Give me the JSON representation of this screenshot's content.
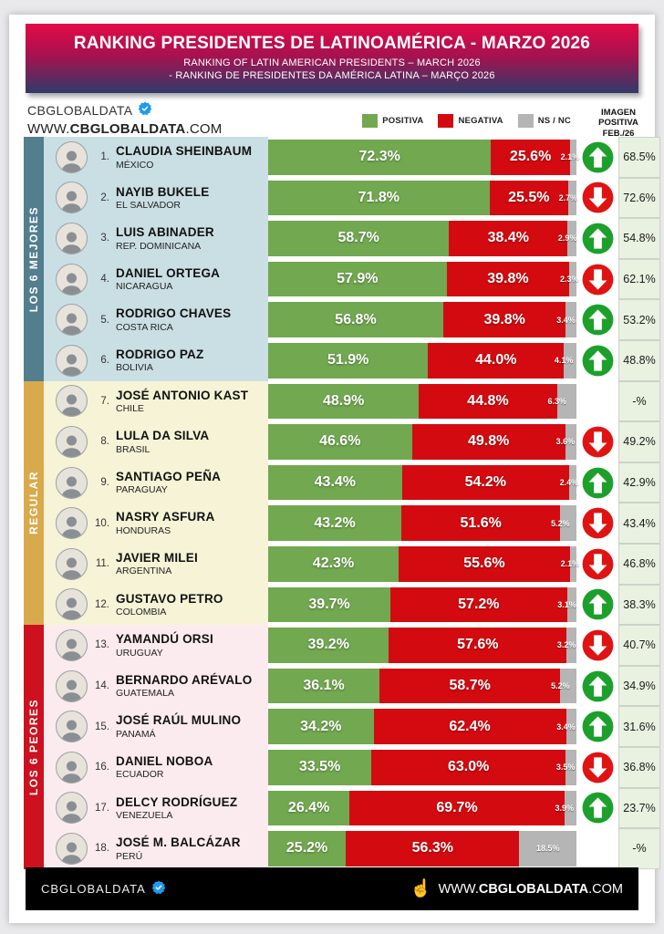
{
  "banner": {
    "title": "RANKING PRESIDENTES DE LATINOAMÉRICA - MARZO 2026",
    "subtitle1": "RANKING OF LATIN AMERICAN PRESIDENTS – MARCH 2026",
    "subtitle2": "- RANKING DE PRESIDENTES DA AMÉRICA LATINA – MARÇO 2026"
  },
  "brand": {
    "name": "CBGLOBALDATA",
    "site_prefix": "WWW.",
    "site_bold": "CBGLOBALDATA",
    "site_suffix": ".COM"
  },
  "legend": [
    {
      "label": "POSITIVA",
      "color": "#72a850"
    },
    {
      "label": "NEGATIVA",
      "color": "#d30b10"
    },
    {
      "label": "NS / NC",
      "color": "#b5b5b5"
    }
  ],
  "imagen_header": {
    "line1": "IMAGEN",
    "line2": "POSITIVA",
    "line3": "FEB./26"
  },
  "colors": {
    "positiva": "#72a850",
    "negativa": "#d30b10",
    "nsnc": "#b5b5b5",
    "trend_up": "#1ca02b",
    "trend_down": "#e01313",
    "imagen_cell_bg": "#e9f2e1"
  },
  "groups": [
    {
      "label": "LOS 6 MEJORES",
      "strip_color": "#527e8e",
      "bg": "#cadfe4",
      "rows": [
        {
          "rank": "1.",
          "name": "CLAUDIA SHEINBAUM",
          "country": "MÉXICO",
          "positiva": 72.3,
          "negativa": 25.6,
          "nsnc": 2.1,
          "positiva_label": "72.3%",
          "negativa_label": "25.6%",
          "nsnc_label": "2.1%",
          "trend": "up",
          "imagen_feb": "68.5%"
        },
        {
          "rank": "2.",
          "name": "NAYIB BUKELE",
          "country": "EL SALVADOR",
          "positiva": 71.8,
          "negativa": 25.5,
          "nsnc": 2.7,
          "positiva_label": "71.8%",
          "negativa_label": "25.5%",
          "nsnc_label": "2.7%",
          "trend": "down",
          "imagen_feb": "72.6%"
        },
        {
          "rank": "3.",
          "name": "LUIS ABINADER",
          "country": "REP. DOMINICANA",
          "positiva": 58.7,
          "negativa": 38.4,
          "nsnc": 2.9,
          "positiva_label": "58.7%",
          "negativa_label": "38.4%",
          "nsnc_label": "2.9%",
          "trend": "up",
          "imagen_feb": "54.8%"
        },
        {
          "rank": "4.",
          "name": "DANIEL ORTEGA",
          "country": "NICARAGUA",
          "positiva": 57.9,
          "negativa": 39.8,
          "nsnc": 2.3,
          "positiva_label": "57.9%",
          "negativa_label": "39.8%",
          "nsnc_label": "2.3%",
          "trend": "down",
          "imagen_feb": "62.1%"
        },
        {
          "rank": "5.",
          "name": "RODRIGO CHAVES",
          "country": "COSTA RICA",
          "positiva": 56.8,
          "negativa": 39.8,
          "nsnc": 3.4,
          "positiva_label": "56.8%",
          "negativa_label": "39.8%",
          "nsnc_label": "3.4%",
          "trend": "up",
          "imagen_feb": "53.2%"
        },
        {
          "rank": "6.",
          "name": "RODRIGO PAZ",
          "country": "BOLIVIA",
          "positiva": 51.9,
          "negativa": 44.0,
          "nsnc": 4.1,
          "positiva_label": "51.9%",
          "negativa_label": "44.0%",
          "nsnc_label": "4.1%",
          "trend": "up",
          "imagen_feb": "48.8%"
        }
      ]
    },
    {
      "label": "REGULAR",
      "strip_color": "#d9aa4c",
      "bg": "#f6f3d6",
      "rows": [
        {
          "rank": "7.",
          "name": "JOSÉ ANTONIO KAST",
          "country": "CHILE",
          "positiva": 48.9,
          "negativa": 44.8,
          "nsnc": 6.3,
          "positiva_label": "48.9%",
          "negativa_label": "44.8%",
          "nsnc_label": "6.3%",
          "trend": "none",
          "imagen_feb": "-%"
        },
        {
          "rank": "8.",
          "name": "LULA DA SILVA",
          "country": "BRASIL",
          "positiva": 46.6,
          "negativa": 49.8,
          "nsnc": 3.6,
          "positiva_label": "46.6%",
          "negativa_label": "49.8%",
          "nsnc_label": "3.6%",
          "trend": "down",
          "imagen_feb": "49.2%"
        },
        {
          "rank": "9.",
          "name": "SANTIAGO PEÑA",
          "country": "PARAGUAY",
          "positiva": 43.4,
          "negativa": 54.2,
          "nsnc": 2.4,
          "positiva_label": "43.4%",
          "negativa_label": "54.2%",
          "nsnc_label": "2.4%",
          "trend": "up",
          "imagen_feb": "42.9%"
        },
        {
          "rank": "10.",
          "name": "NASRY ASFURA",
          "country": "HONDURAS",
          "positiva": 43.2,
          "negativa": 51.6,
          "nsnc": 5.2,
          "positiva_label": "43.2%",
          "negativa_label": "51.6%",
          "nsnc_label": "5.2%",
          "trend": "down",
          "imagen_feb": "43.4%"
        },
        {
          "rank": "11.",
          "name": "JAVIER MILEI",
          "country": "ARGENTINA",
          "positiva": 42.3,
          "negativa": 55.6,
          "nsnc": 2.1,
          "positiva_label": "42.3%",
          "negativa_label": "55.6%",
          "nsnc_label": "2.1%",
          "trend": "down",
          "imagen_feb": "46.8%"
        },
        {
          "rank": "12.",
          "name": "GUSTAVO PETRO",
          "country": "COLOMBIA",
          "positiva": 39.7,
          "negativa": 57.2,
          "nsnc": 3.1,
          "positiva_label": "39.7%",
          "negativa_label": "57.2%",
          "nsnc_label": "3.1%",
          "trend": "up",
          "imagen_feb": "38.3%"
        }
      ]
    },
    {
      "label": "LOS 6 PEORES",
      "strip_color": "#cd111f",
      "bg": "#fcebee",
      "rows": [
        {
          "rank": "13.",
          "name": "YAMANDÚ ORSI",
          "country": "URUGUAY",
          "positiva": 39.2,
          "negativa": 57.6,
          "nsnc": 3.2,
          "positiva_label": "39.2%",
          "negativa_label": "57.6%",
          "nsnc_label": "3.2%",
          "trend": "down",
          "imagen_feb": "40.7%"
        },
        {
          "rank": "14.",
          "name": "BERNARDO ARÉVALO",
          "country": "GUATEMALA",
          "positiva": 36.1,
          "negativa": 58.7,
          "nsnc": 5.2,
          "positiva_label": "36.1%",
          "negativa_label": "58.7%",
          "nsnc_label": "5.2%",
          "trend": "up",
          "imagen_feb": "34.9%"
        },
        {
          "rank": "15.",
          "name": "JOSÉ RAÚL MULINO",
          "country": "PANAMÁ",
          "positiva": 34.2,
          "negativa": 62.4,
          "nsnc": 3.4,
          "positiva_label": "34.2%",
          "negativa_label": "62.4%",
          "nsnc_label": "3.4%",
          "trend": "up",
          "imagen_feb": "31.6%"
        },
        {
          "rank": "16.",
          "name": "DANIEL NOBOA",
          "country": "ECUADOR",
          "positiva": 33.5,
          "negativa": 63.0,
          "nsnc": 3.5,
          "positiva_label": "33.5%",
          "negativa_label": "63.0%",
          "nsnc_label": "3.5%",
          "trend": "down",
          "imagen_feb": "36.8%"
        },
        {
          "rank": "17.",
          "name": "DELCY RODRÍGUEZ",
          "country": "VENEZUELA",
          "positiva": 26.4,
          "negativa": 69.7,
          "nsnc": 3.9,
          "positiva_label": "26.4%",
          "negativa_label": "69.7%",
          "nsnc_label": "3.9%",
          "trend": "up",
          "imagen_feb": "23.7%"
        },
        {
          "rank": "18.",
          "name": "JOSÉ M. BALCÁZAR",
          "country": "PERÚ",
          "positiva": 25.2,
          "negativa": 56.3,
          "nsnc": 18.5,
          "positiva_label": "25.2%",
          "negativa_label": "56.3%",
          "nsnc_label": "18.5%",
          "trend": "none",
          "imagen_feb": "-%"
        }
      ]
    }
  ],
  "footer": {
    "brand": "CBGLOBALDATA",
    "site_prefix": "WWW.",
    "site_bold": "CBGLOBALDATA",
    "site_suffix": ".COM"
  },
  "chart_data": {
    "type": "bar",
    "orientation": "horizontal",
    "stacked": true,
    "title": "RANKING PRESIDENTES DE LATINOAMÉRICA - MARZO 2026",
    "xlim": [
      0,
      100
    ],
    "legend_position": "top",
    "categories": [
      "CLAUDIA SHEINBAUM (MÉXICO)",
      "NAYIB BUKELE (EL SALVADOR)",
      "LUIS ABINADER (REP. DOMINICANA)",
      "DANIEL ORTEGA (NICARAGUA)",
      "RODRIGO CHAVES (COSTA RICA)",
      "RODRIGO PAZ (BOLIVIA)",
      "JOSÉ ANTONIO KAST (CHILE)",
      "LULA DA SILVA (BRASIL)",
      "SANTIAGO PEÑA (PARAGUAY)",
      "NASRY ASFURA (HONDURAS)",
      "JAVIER MILEI (ARGENTINA)",
      "GUSTAVO PETRO (COLOMBIA)",
      "YAMANDÚ ORSI (URUGUAY)",
      "BERNARDO ARÉVALO (GUATEMALA)",
      "JOSÉ RAÚL MULINO (PANAMÁ)",
      "DANIEL NOBOA (ECUADOR)",
      "DELCY RODRÍGUEZ (VENEZUELA)",
      "JOSÉ M. BALCÁZAR (PERÚ)"
    ],
    "series": [
      {
        "name": "POSITIVA",
        "values": [
          72.3,
          71.8,
          58.7,
          57.9,
          56.8,
          51.9,
          48.9,
          46.6,
          43.4,
          43.2,
          42.3,
          39.7,
          39.2,
          36.1,
          34.2,
          33.5,
          26.4,
          25.2
        ]
      },
      {
        "name": "NEGATIVA",
        "values": [
          25.6,
          25.5,
          38.4,
          39.8,
          39.8,
          44.0,
          44.8,
          49.8,
          54.2,
          51.6,
          55.6,
          57.2,
          57.6,
          58.7,
          62.4,
          63.0,
          69.7,
          56.3
        ]
      },
      {
        "name": "NS / NC",
        "values": [
          2.1,
          2.7,
          2.9,
          2.3,
          3.4,
          4.1,
          6.3,
          3.6,
          2.4,
          5.2,
          2.1,
          3.1,
          3.2,
          5.2,
          3.4,
          3.5,
          3.9,
          18.5
        ]
      },
      {
        "name": "IMAGEN POSITIVA FEB./26",
        "values": [
          68.5,
          72.6,
          54.8,
          62.1,
          53.2,
          48.8,
          null,
          49.2,
          42.9,
          43.4,
          46.8,
          38.3,
          40.7,
          34.9,
          31.6,
          36.8,
          23.7,
          null
        ]
      }
    ],
    "trend_vs_previous": [
      "up",
      "down",
      "up",
      "down",
      "up",
      "up",
      "none",
      "down",
      "up",
      "down",
      "down",
      "up",
      "down",
      "up",
      "up",
      "down",
      "up",
      "none"
    ],
    "group_labels": [
      "LOS 6 MEJORES",
      "REGULAR",
      "LOS 6 PEORES"
    ]
  }
}
